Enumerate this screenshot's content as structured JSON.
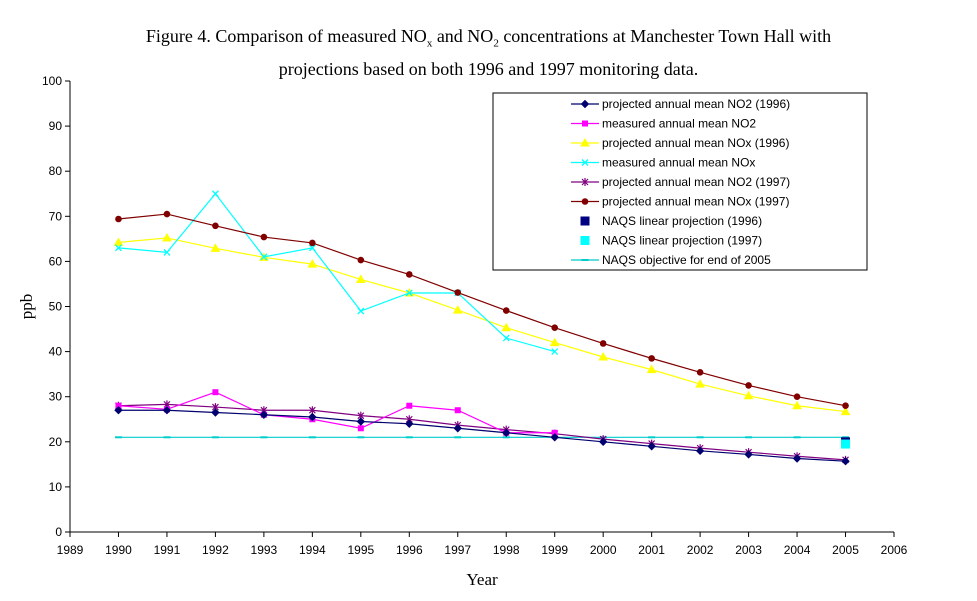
{
  "chart_data": {
    "type": "line",
    "title_parts": {
      "a": "Figure 4. Comparison of measured NO",
      "a_sub": "x",
      "b": " and NO",
      "b_sub": "2",
      "c": " concentrations at Manchester Town Hall with",
      "line2": "projections based on both 1996 and 1997 monitoring data."
    },
    "xlabel": "Year",
    "ylabel": "ppb",
    "xlim": [
      1989,
      2006
    ],
    "ylim": [
      0,
      100
    ],
    "xticks": [
      1989,
      1990,
      1991,
      1992,
      1993,
      1994,
      1995,
      1996,
      1997,
      1998,
      1999,
      2000,
      2001,
      2002,
      2003,
      2004,
      2005,
      2006
    ],
    "yticks": [
      0,
      10,
      20,
      30,
      40,
      50,
      60,
      70,
      80,
      90,
      100
    ],
    "grid": false,
    "legend_position": "top-right",
    "series": [
      {
        "name": "projected annual mean NO2 (1996)",
        "color": "#00006f",
        "marker": "diamond",
        "x": [
          1990,
          1991,
          1992,
          1993,
          1994,
          1995,
          1996,
          1997,
          1998,
          1999,
          2000,
          2001,
          2002,
          2003,
          2004,
          2005
        ],
        "y": [
          27,
          27,
          26.5,
          26,
          25.5,
          24.5,
          24,
          23,
          22,
          21,
          20,
          19,
          18,
          17.2,
          16.3,
          15.7
        ]
      },
      {
        "name": "measured annual mean NO2",
        "color": "#ff00ff",
        "marker": "square",
        "x": [
          1990,
          1991,
          1992,
          1993,
          1994,
          1995,
          1996,
          1997,
          1998,
          1999
        ],
        "y": [
          28,
          27.2,
          31,
          26,
          25,
          23,
          28,
          27,
          22,
          22
        ]
      },
      {
        "name": "projected annual mean NOx (1996)",
        "color": "#ffff00",
        "marker": "triangle",
        "x": [
          1990,
          1991,
          1992,
          1993,
          1994,
          1995,
          1996,
          1997,
          1998,
          1999,
          2000,
          2001,
          2002,
          2003,
          2004,
          2005
        ],
        "y": [
          64.2,
          65.2,
          62.9,
          60.9,
          59.4,
          56,
          53,
          49.2,
          45.3,
          42,
          38.8,
          36,
          32.8,
          30.2,
          28,
          26.7
        ]
      },
      {
        "name": "measured annual mean NOx",
        "color": "#00ffff",
        "marker": "x",
        "x": [
          1990,
          1991,
          1992,
          1993,
          1994,
          1995,
          1996,
          1997,
          1998,
          1999
        ],
        "y": [
          63,
          62,
          75,
          61,
          63,
          49,
          53,
          53,
          43,
          40
        ]
      },
      {
        "name": "projected annual mean NO2 (1997)",
        "color": "#800080",
        "marker": "star",
        "x": [
          1990,
          1991,
          1992,
          1993,
          1994,
          1995,
          1996,
          1997,
          1998,
          1999,
          2000,
          2001,
          2002,
          2003,
          2004,
          2005
        ],
        "y": [
          28,
          28.3,
          27.7,
          27,
          27,
          25.8,
          25,
          23.7,
          22.7,
          21.8,
          20.6,
          19.6,
          18.6,
          17.7,
          16.8,
          16
        ]
      },
      {
        "name": "projected annual mean NOx (1997)",
        "color": "#800000",
        "marker": "circle",
        "x": [
          1990,
          1991,
          1992,
          1993,
          1994,
          1995,
          1996,
          1997,
          1998,
          1999,
          2000,
          2001,
          2002,
          2003,
          2004,
          2005
        ],
        "y": [
          69.4,
          70.5,
          67.9,
          65.4,
          64.1,
          60.3,
          57.1,
          53.1,
          49.1,
          45.3,
          41.8,
          38.5,
          35.4,
          32.5,
          30,
          28
        ]
      },
      {
        "name": "NAQS linear projection (1996)",
        "color": "#000080",
        "marker": "bigsquare",
        "x": [
          2005
        ],
        "y": [
          20
        ]
      },
      {
        "name": "NAQS linear projection (1997)",
        "color": "#00ffff",
        "marker": "bigsquare",
        "x": [
          2005
        ],
        "y": [
          19.5
        ]
      },
      {
        "name": "NAQS objective for end of 2005",
        "color": "#00cccc",
        "marker": "dash",
        "x": [
          1990,
          1991,
          1992,
          1993,
          1994,
          1995,
          1996,
          1997,
          1998,
          1999,
          2000,
          2001,
          2002,
          2003,
          2004,
          2005
        ],
        "y": [
          21,
          21,
          21,
          21,
          21,
          21,
          21,
          21,
          21,
          21,
          21,
          21,
          21,
          21,
          21,
          21
        ]
      }
    ]
  }
}
